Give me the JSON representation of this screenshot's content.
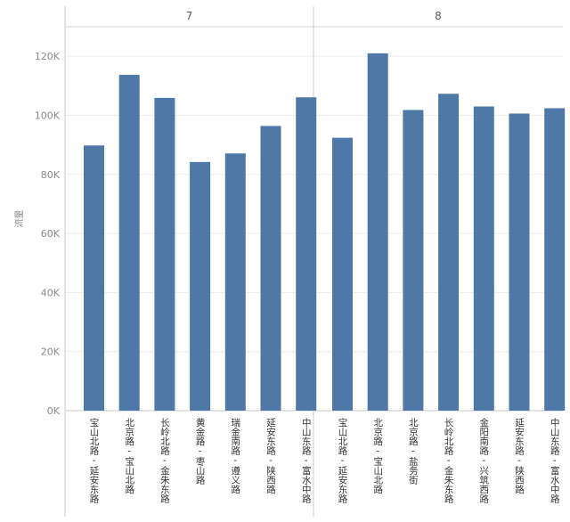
{
  "chart_data": {
    "type": "bar",
    "ylabel": "流量",
    "ylim": [
      0,
      130000
    ],
    "y_ticks": [
      0,
      20000,
      40000,
      60000,
      80000,
      100000,
      120000
    ],
    "y_tick_labels": [
      "0K",
      "20K",
      "40K",
      "60K",
      "80K",
      "100K",
      "120K"
    ],
    "grid": true,
    "bar_color": "#4e79a7",
    "panels": [
      {
        "name": "7",
        "categories": [
          "宝山北路-延安东路",
          "北京路-宝山北路",
          "长岭北路-金朱东路",
          "黄金路-枣山路",
          "瑞金南路-遵义路",
          "延安东路-陕西路",
          "中山东路-富水中路"
        ],
        "values": [
          89800,
          113700,
          105900,
          84200,
          87100,
          96400,
          106100
        ]
      },
      {
        "name": "8",
        "categories": [
          "宝山北路-延安东路",
          "北京路-宝山北路",
          "北京路-盐务街",
          "长岭北路-金朱东路",
          "金阳南路-兴筑西路",
          "延安东路-陕西路",
          "中山东路-富水中路"
        ],
        "values": [
          92400,
          121000,
          101800,
          107300,
          103000,
          100600,
          102400
        ]
      }
    ]
  }
}
